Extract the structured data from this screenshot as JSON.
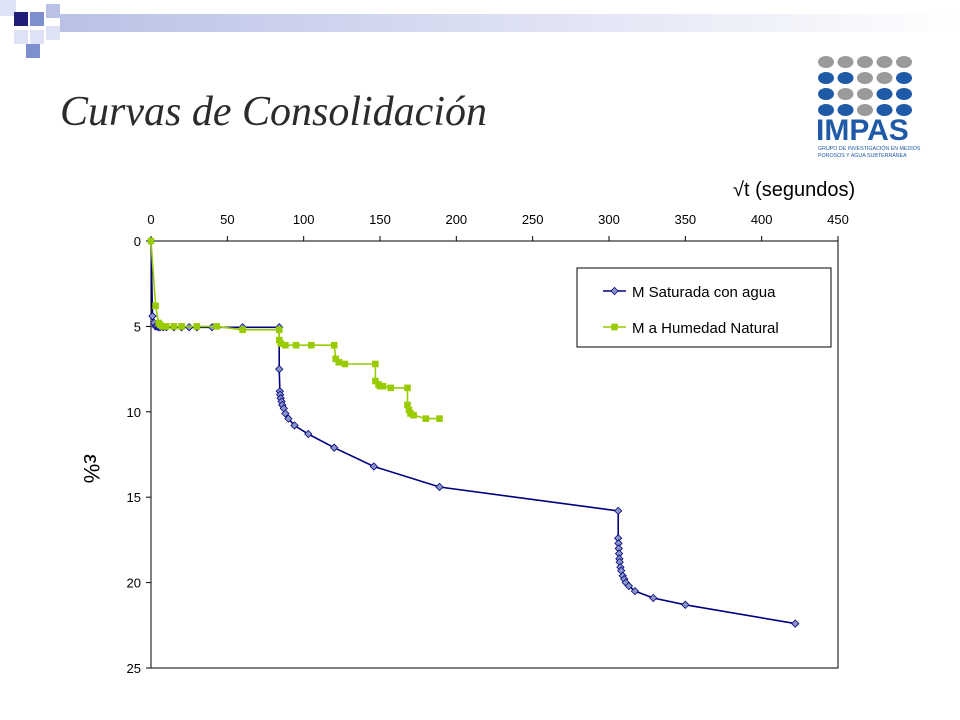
{
  "slide": {
    "title": "Curvas de Consolidación"
  },
  "logo": {
    "name": "IMPAS",
    "subtitle_line1": "GRUPO DE INVESTIGACIÓN EN MEDIOS",
    "subtitle_line2": "POROSOS  Y  AGUA  SUBTERRÁNEA",
    "colors": {
      "blue": "#1f5aa6",
      "gray": "#9a9a9a"
    }
  },
  "decoration": {
    "square_colors": [
      "#1f1f7a",
      "#7d8fcf",
      "#b9c1e6",
      "#dde2f4"
    ]
  },
  "chart_data": {
    "type": "line",
    "x_axis_label": "√t (segundos)",
    "y_axis_label": "ε%",
    "x_axis_position": "top",
    "y_inverted": true,
    "xlim": [
      0,
      450
    ],
    "ylim": [
      0,
      25
    ],
    "x_ticks": [
      0,
      50,
      100,
      150,
      200,
      250,
      300,
      350,
      400,
      450
    ],
    "y_ticks": [
      0,
      5,
      10,
      15,
      20,
      25
    ],
    "grid": false,
    "legend_position": "top-right",
    "series": [
      {
        "name": "M Saturada con agua",
        "color": "#000080",
        "marker": "diamond",
        "marker_color": "#8a96c6",
        "x": [
          0,
          1,
          2,
          3,
          4,
          5,
          6,
          8,
          10,
          15,
          20,
          25,
          30,
          40,
          60,
          84,
          84,
          84.4,
          84.6,
          85,
          85.5,
          86,
          87,
          88,
          90,
          94,
          103,
          120,
          146,
          189,
          306,
          306,
          306.2,
          306.4,
          306.6,
          306.8,
          307,
          307.5,
          308,
          309,
          310,
          311,
          313,
          317,
          329,
          350,
          422
        ],
        "y": [
          0,
          4.4,
          4.8,
          5.0,
          5.0,
          5.05,
          5.05,
          5.05,
          5.05,
          5.05,
          5.05,
          5.05,
          5.05,
          5.05,
          5.05,
          5.05,
          7.5,
          8.8,
          9.0,
          9.2,
          9.4,
          9.6,
          9.8,
          10.1,
          10.4,
          10.8,
          11.3,
          12.1,
          13.2,
          14.4,
          15.8,
          17.4,
          17.7,
          18.0,
          18.3,
          18.6,
          18.8,
          19.1,
          19.3,
          19.6,
          19.8,
          20.0,
          20.2,
          20.5,
          20.9,
          21.3,
          22.4
        ]
      },
      {
        "name": "M a Humedad Natural",
        "color": "#99cc00",
        "marker": "square",
        "marker_color": "#99cc00",
        "x": [
          0,
          3,
          5,
          6,
          8,
          10,
          15,
          20,
          30,
          43,
          60,
          84,
          84,
          85,
          88,
          95,
          105,
          120,
          121,
          123,
          127,
          147,
          147,
          149,
          150,
          152,
          157,
          168,
          168,
          169,
          170,
          172,
          180,
          189
        ],
        "y": [
          0,
          3.8,
          4.8,
          4.9,
          5.0,
          5.0,
          5.0,
          5.0,
          5.0,
          5.0,
          5.2,
          5.2,
          5.8,
          6.0,
          6.1,
          6.1,
          6.1,
          6.1,
          6.9,
          7.1,
          7.2,
          7.2,
          8.2,
          8.4,
          8.5,
          8.5,
          8.6,
          8.6,
          9.6,
          9.9,
          10.1,
          10.2,
          10.4,
          10.4
        ]
      }
    ]
  }
}
